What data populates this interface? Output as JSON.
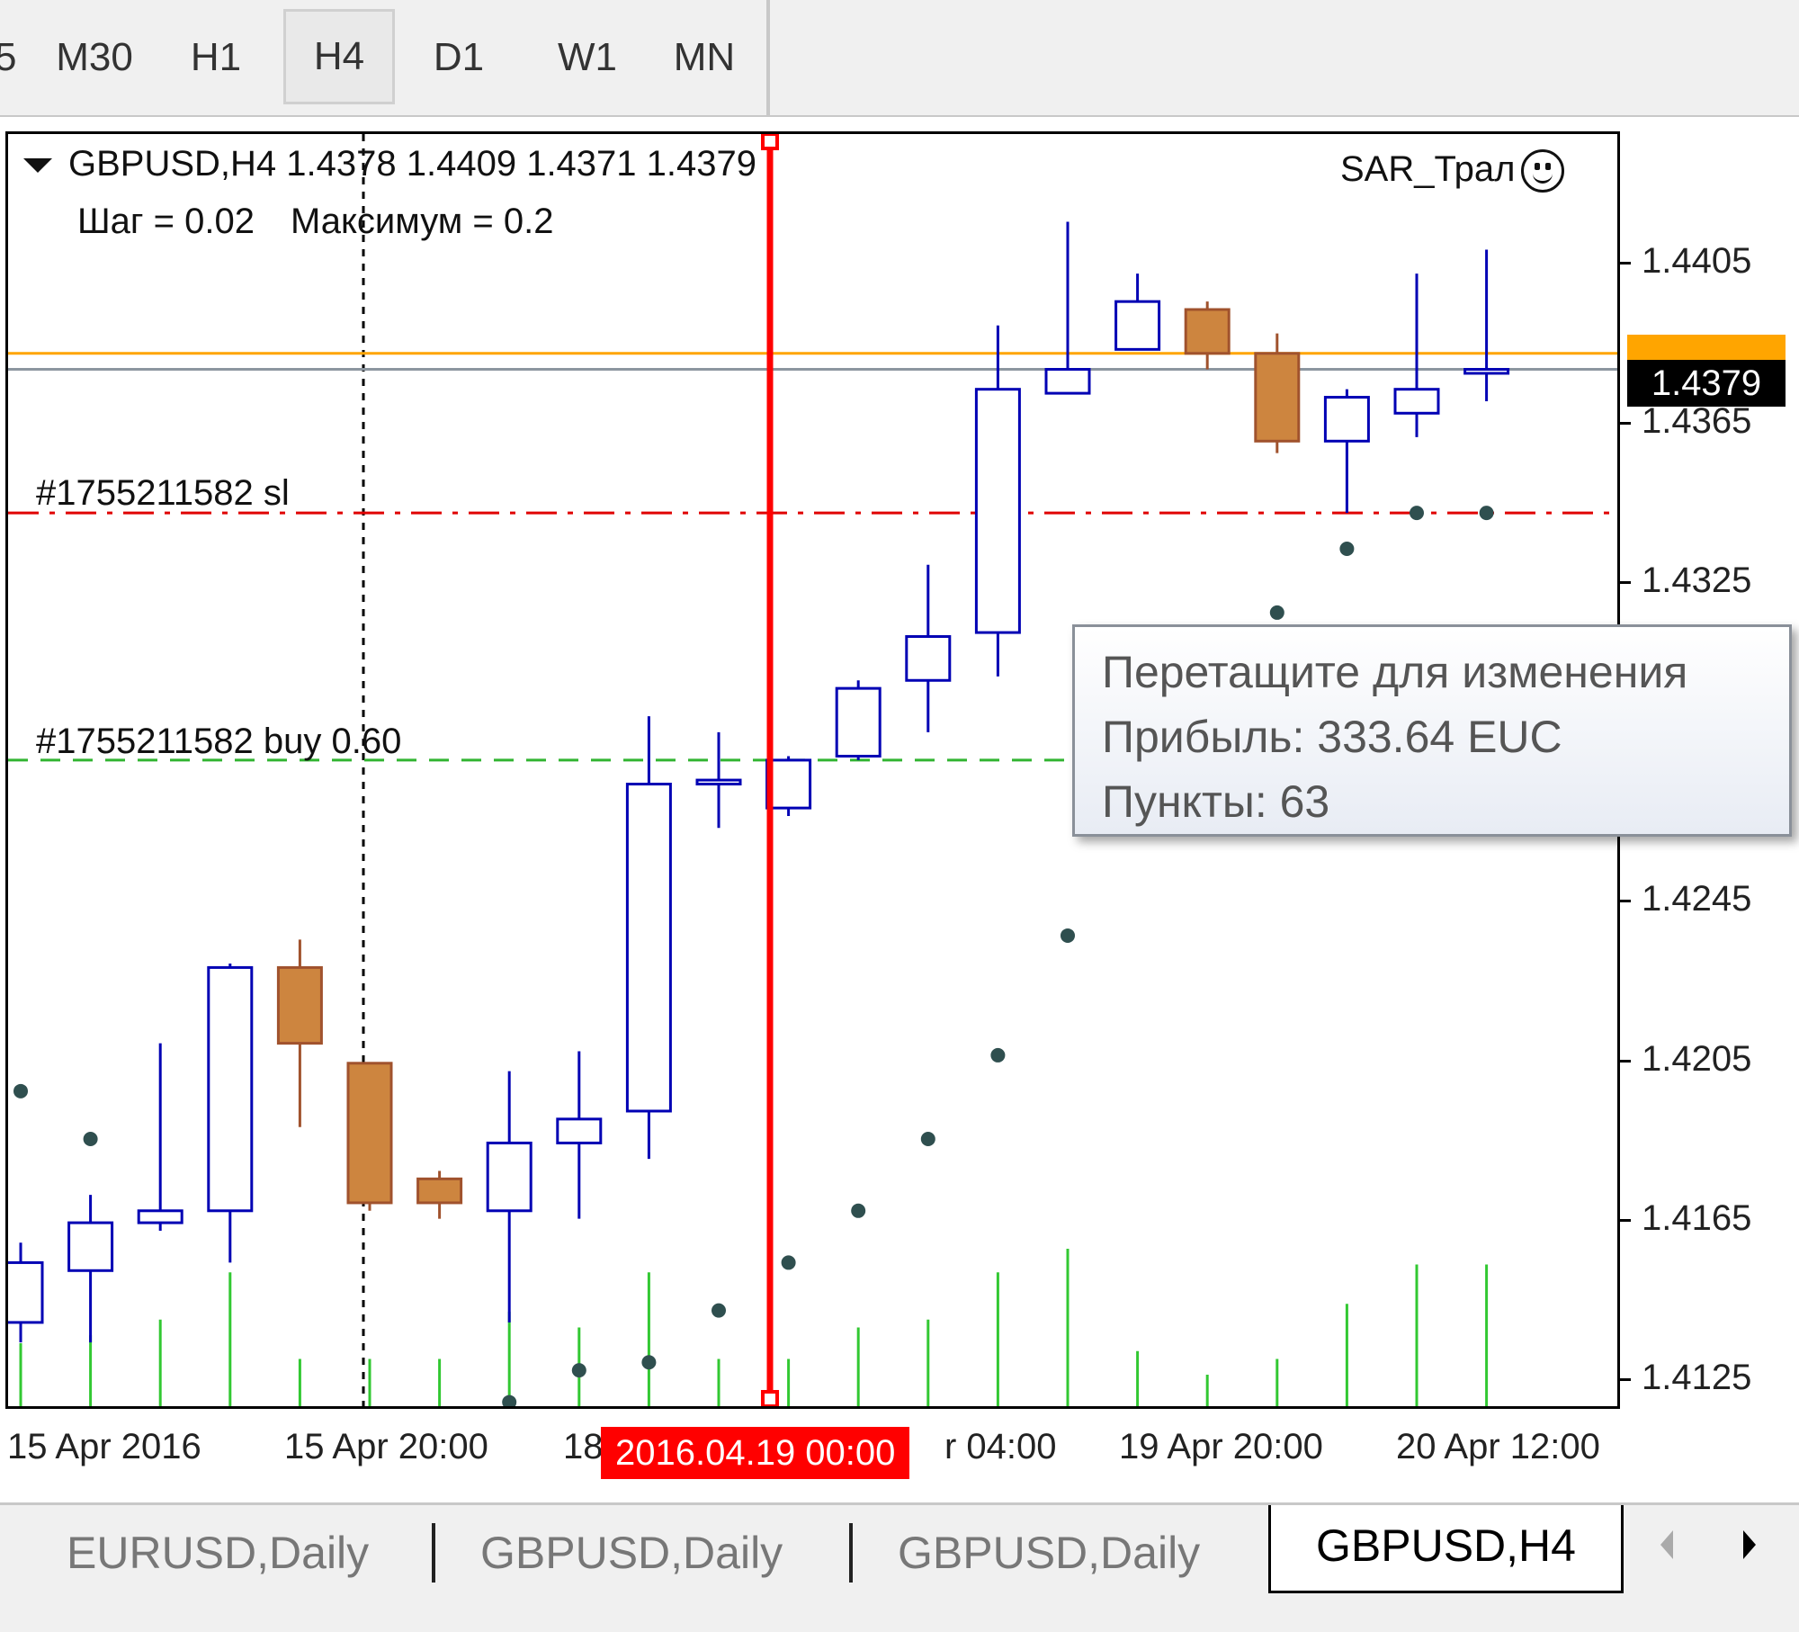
{
  "timeframes": [
    {
      "label": "5",
      "active": false
    },
    {
      "label": "M30",
      "active": false
    },
    {
      "label": "H1",
      "active": false
    },
    {
      "label": "H4",
      "active": true
    },
    {
      "label": "D1",
      "active": false
    },
    {
      "label": "W1",
      "active": false
    },
    {
      "label": "MN",
      "active": false
    }
  ],
  "chart": {
    "symbol_line": "GBPUSD,H4  1.4378 1.4409 1.4371 1.4379",
    "param_step": "Шаг = 0.02",
    "param_max": "Максимум = 0.2",
    "ea_name": "SAR_Трал",
    "sl_label": "#1755211582 sl",
    "buy_label": "#1755211582 buy 0.60",
    "current_price": "1.4379",
    "ask_price": "1.4383"
  },
  "tooltip": {
    "line1": "Перетащите для изменения",
    "line2": "Прибыль: 333.64 EUC",
    "line3": "Пункты: 63"
  },
  "price_axis": [
    "1.4405",
    "1.4365",
    "1.4325",
    "1.4245",
    "1.4205",
    "1.4165",
    "1.4125"
  ],
  "time_axis": {
    "labels": [
      "15 Apr 2016",
      "15 Apr 20:00",
      "18",
      "r 04:00",
      "19 Apr 20:00",
      "20 Apr 12:00"
    ],
    "cursor": "2016.04.19 00:00"
  },
  "tabs": [
    {
      "label": "EURUSD,Daily",
      "active": false
    },
    {
      "label": "GBPUSD,Daily",
      "active": false
    },
    {
      "label": "GBPUSD,Daily",
      "active": false
    },
    {
      "label": "GBPUSD,H4",
      "active": true
    }
  ],
  "colors": {
    "bull_outline": "#0000b4",
    "bear_fill": "#cd853f",
    "bear_outline": "#a0522d",
    "volume": "#32c832",
    "sar_dot": "#2f4f4f",
    "sl_line": "#e00000",
    "buy_line": "#32b432",
    "ask_line": "#ffa500",
    "bid_line": "#8c96a0",
    "cursor_line": "#ff0000"
  },
  "chart_data": {
    "type": "candlestick",
    "candles": [
      {
        "o": 1.414,
        "h": 1.416,
        "l": 1.4135,
        "c": 1.4155
      },
      {
        "o": 1.4153,
        "h": 1.4172,
        "l": 1.4135,
        "c": 1.4165
      },
      {
        "o": 1.4165,
        "h": 1.421,
        "l": 1.4163,
        "c": 1.4168
      },
      {
        "o": 1.4168,
        "h": 1.423,
        "l": 1.4155,
        "c": 1.4229
      },
      {
        "o": 1.4229,
        "h": 1.4236,
        "l": 1.4189,
        "c": 1.421
      },
      {
        "o": 1.4205,
        "h": 1.4205,
        "l": 1.4168,
        "c": 1.417
      },
      {
        "o": 1.4176,
        "h": 1.4178,
        "l": 1.4166,
        "c": 1.417
      },
      {
        "o": 1.4168,
        "h": 1.4203,
        "l": 1.414,
        "c": 1.4185
      },
      {
        "o": 1.4185,
        "h": 1.4208,
        "l": 1.4166,
        "c": 1.4191
      },
      {
        "o": 1.4193,
        "h": 1.4292,
        "l": 1.4181,
        "c": 1.4275
      },
      {
        "o": 1.4275,
        "h": 1.4288,
        "l": 1.4264,
        "c": 1.4276
      },
      {
        "o": 1.4269,
        "h": 1.4282,
        "l": 1.4267,
        "c": 1.4281
      },
      {
        "o": 1.4282,
        "h": 1.4301,
        "l": 1.4281,
        "c": 1.4299
      },
      {
        "o": 1.4301,
        "h": 1.433,
        "l": 1.4288,
        "c": 1.4312
      },
      {
        "o": 1.4313,
        "h": 1.439,
        "l": 1.4302,
        "c": 1.4374
      },
      {
        "o": 1.4373,
        "h": 1.4416,
        "l": 1.4373,
        "c": 1.4379
      },
      {
        "o": 1.4384,
        "h": 1.4403,
        "l": 1.4384,
        "c": 1.4396
      },
      {
        "o": 1.4394,
        "h": 1.4396,
        "l": 1.4379,
        "c": 1.4383
      },
      {
        "o": 1.4383,
        "h": 1.4388,
        "l": 1.4358,
        "c": 1.4361
      },
      {
        "o": 1.4361,
        "h": 1.4374,
        "l": 1.4343,
        "c": 1.4372
      },
      {
        "o": 1.4368,
        "h": 1.4403,
        "l": 1.4362,
        "c": 1.4374
      },
      {
        "o": 1.4378,
        "h": 1.4409,
        "l": 1.4371,
        "c": 1.4379
      }
    ],
    "sar": [
      1.4198,
      1.4186,
      null,
      null,
      null,
      null,
      null,
      1.412,
      1.4128,
      1.413,
      1.4143,
      1.4155,
      1.4168,
      1.4186,
      1.4207,
      1.4237,
      null,
      null,
      1.4318,
      1.4334,
      1.4343,
      1.4343
    ],
    "volume": [
      0.4,
      0.45,
      0.55,
      0.85,
      0.3,
      0.3,
      0.3,
      0.6,
      0.5,
      0.85,
      0.3,
      0.3,
      0.5,
      0.55,
      0.85,
      1.0,
      0.35,
      0.2,
      0.3,
      0.65,
      0.9,
      0.9
    ],
    "sl_level": 1.4343,
    "buy_level": 1.4281,
    "ask_level": 1.4383,
    "bid_level": 1.4379,
    "ylim": [
      1.4119,
      1.4438
    ]
  }
}
